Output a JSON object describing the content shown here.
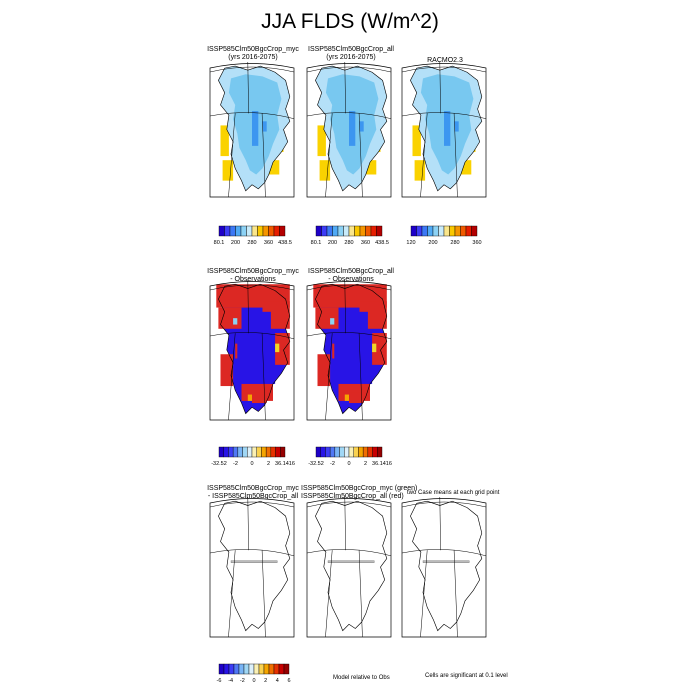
{
  "title": "JJA FLDS (W/m^2)",
  "colors": {
    "light_blue": "#78c8f0",
    "pale_blue": "#b4e0f8",
    "mid_blue": "#3c96f0",
    "yellow": "#fad200",
    "orange": "#f5a500",
    "diff_red": "#dc2823",
    "diff_blue": "#2814e6",
    "diff_cyan": "#8cd2f0",
    "diff_yellow": "#f0d828"
  },
  "panels": {
    "top_left": {
      "title_line1": "ISSP585Clm50BgcCrop_myc",
      "title_line2": "(yrs 2016-2075)"
    },
    "top_middle": {
      "title_line1": "ISSP585Clm50BgcCrop_all",
      "title_line2": "(yrs 2016-2075)"
    },
    "top_right": {
      "title_line1": "RACMO2.3",
      "title_line2": ""
    },
    "mid_left": {
      "title_line1": "ISSP585Clm50BgcCrop_myc",
      "title_line2": "- Observations"
    },
    "mid_middle": {
      "title_line1": "ISSP585Clm50BgcCrop_all",
      "title_line2": "- Observations"
    },
    "bot_left": {
      "title_line1": "ISSP585Clm50BgcCrop_myc",
      "title_line2": "- ISSP585Clm50BgcCrop_all"
    },
    "bot_middle": {
      "title_line1": "ISSP585Clm50BgcCrop_myc (green)",
      "title_line2": "ISSP585Clm50BgcCrop_all (red)"
    },
    "bot_right_note": "two Case means at each grid point"
  },
  "chart_data": [
    {
      "type": "heatmap",
      "panel": "top_left",
      "colorbar": {
        "colors": [
          "#1e00c8",
          "#3c3cf5",
          "#3c78f5",
          "#50aaf5",
          "#8cd2f5",
          "#c8ebfa",
          "#fae68c",
          "#fac800",
          "#f59600",
          "#f05a00",
          "#e61e00",
          "#b40000"
        ],
        "tick_labels": [
          "80.1",
          "200",
          "280",
          "360",
          "438.5"
        ]
      }
    },
    {
      "type": "heatmap",
      "panel": "top_middle",
      "colorbar": {
        "colors": [
          "#1e00c8",
          "#3c3cf5",
          "#3c78f5",
          "#50aaf5",
          "#8cd2f5",
          "#c8ebfa",
          "#fae68c",
          "#fac800",
          "#f59600",
          "#f05a00",
          "#e61e00",
          "#b40000"
        ],
        "tick_labels": [
          "80.1",
          "200",
          "280",
          "360",
          "438.5"
        ]
      }
    },
    {
      "type": "heatmap",
      "panel": "top_right",
      "colorbar": {
        "colors": [
          "#1e00c8",
          "#3c3cf5",
          "#3c78f5",
          "#50aaf5",
          "#8cd2f5",
          "#c8ebfa",
          "#fae68c",
          "#fac800",
          "#f59600",
          "#f05a00",
          "#e61e00",
          "#b40000"
        ],
        "tick_labels": [
          "120",
          "200",
          "280",
          "360"
        ]
      }
    },
    {
      "type": "heatmap",
      "panel": "mid_left",
      "colorbar": {
        "colors": [
          "#1e00c8",
          "#2814e6",
          "#3c3cf5",
          "#5078f5",
          "#78b4f5",
          "#a0d7f5",
          "#dcf0fa",
          "#faf0b4",
          "#fad250",
          "#f5a500",
          "#f06e00",
          "#e63200",
          "#c80000",
          "#960000"
        ],
        "tick_labels": [
          "-32.52",
          "-2",
          "0",
          "2",
          "36.1416"
        ]
      }
    },
    {
      "type": "heatmap",
      "panel": "mid_middle",
      "colorbar": {
        "colors": [
          "#1e00c8",
          "#2814e6",
          "#3c3cf5",
          "#5078f5",
          "#78b4f5",
          "#a0d7f5",
          "#dcf0fa",
          "#faf0b4",
          "#fad250",
          "#f5a500",
          "#f06e00",
          "#e63200",
          "#c80000",
          "#960000"
        ],
        "tick_labels": [
          "-32.52",
          "-2",
          "0",
          "2",
          "36.1416"
        ]
      }
    },
    {
      "type": "heatmap",
      "panel": "bot_left",
      "colorbar": {
        "colors": [
          "#1e00c8",
          "#2814e6",
          "#3c3cf5",
          "#5078f5",
          "#78b4f5",
          "#a0d7f5",
          "#dcf0fa",
          "#faf0b4",
          "#fad250",
          "#f5a500",
          "#f06e00",
          "#e63200",
          "#c80000",
          "#960000"
        ],
        "tick_labels": [
          "-6",
          "-4",
          "-2",
          "0",
          "2",
          "4",
          "6"
        ]
      }
    }
  ],
  "footer": {
    "note_middle": "Model relative to Obs",
    "note_right": "Cells are significant at 0.1 level"
  }
}
